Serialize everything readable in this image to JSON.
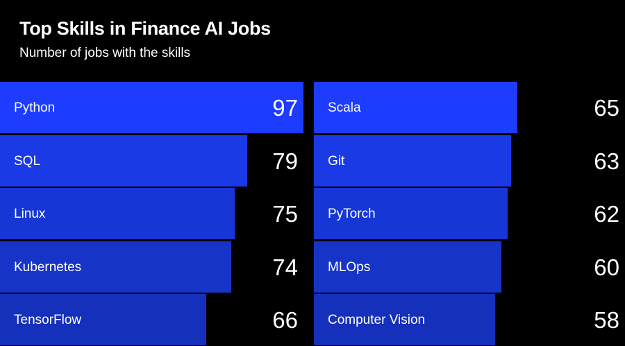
{
  "header": {
    "title": "Top Skills in Finance AI Jobs",
    "subtitle": "Number of jobs with the skills"
  },
  "colors": {
    "background": "#000000",
    "bar_gradient": [
      "#1e3cff",
      "#1a3ae6",
      "#1736d6",
      "#1634c8",
      "#1530ba"
    ],
    "text": "#ffffff"
  },
  "chart_data": {
    "type": "bar",
    "orientation": "horizontal",
    "title": "Top Skills in Finance AI Jobs",
    "subtitle": "Number of jobs with the skills",
    "xlabel": "",
    "ylabel": "",
    "grid": false,
    "legend": "none",
    "xlim": [
      0,
      97
    ],
    "categories": [
      "Python",
      "SQL",
      "Linux",
      "Kubernetes",
      "TensorFlow",
      "Scala",
      "Git",
      "PyTorch",
      "MLOps",
      "Computer Vision"
    ],
    "values": [
      97,
      79,
      75,
      74,
      66,
      65,
      63,
      62,
      60,
      58
    ],
    "columns": [
      {
        "items": [
          {
            "label": "Python",
            "value": 97
          },
          {
            "label": "SQL",
            "value": 79
          },
          {
            "label": "Linux",
            "value": 75
          },
          {
            "label": "Kubernetes",
            "value": 74
          },
          {
            "label": "TensorFlow",
            "value": 66
          }
        ]
      },
      {
        "items": [
          {
            "label": "Scala",
            "value": 65
          },
          {
            "label": "Git",
            "value": 63
          },
          {
            "label": "PyTorch",
            "value": 62
          },
          {
            "label": "MLOps",
            "value": 60
          },
          {
            "label": "Computer Vision",
            "value": 58
          }
        ]
      }
    ]
  }
}
